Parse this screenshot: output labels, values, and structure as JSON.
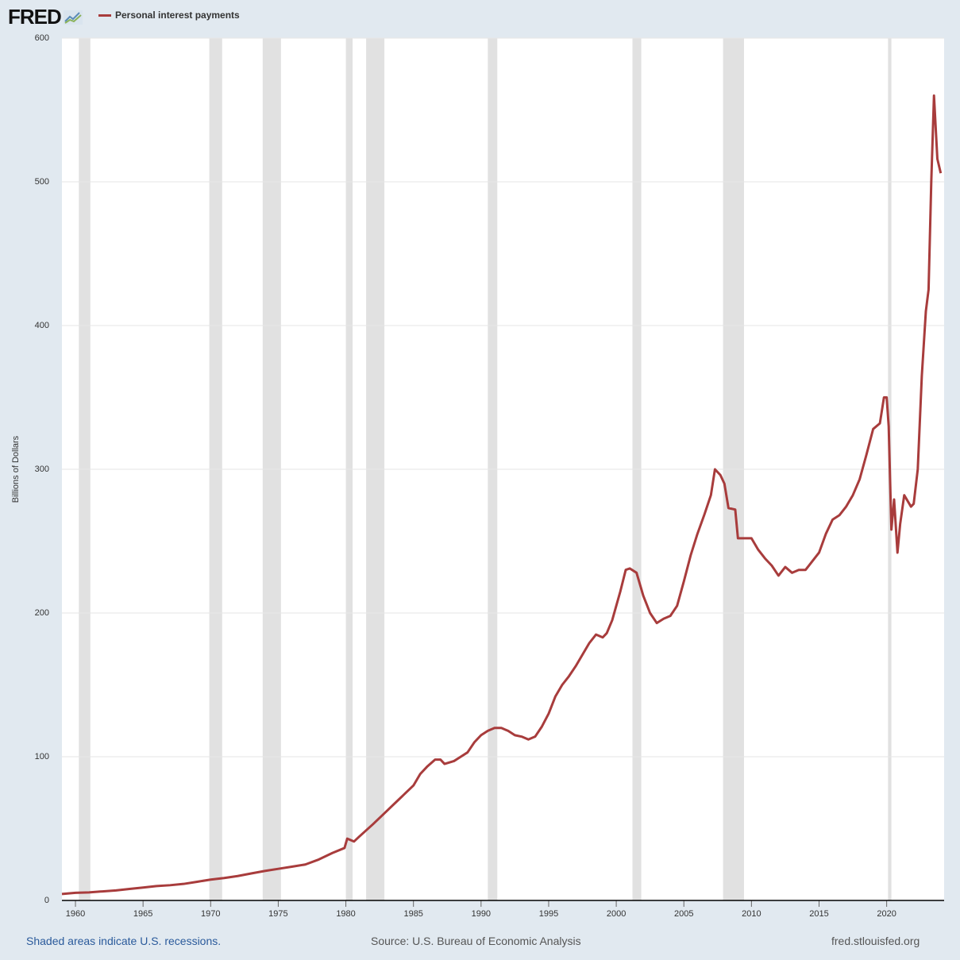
{
  "header": {
    "logo_text": "FRED",
    "logo_icon": "fred-chart-icon"
  },
  "chart_data": {
    "type": "line",
    "title": "",
    "xlabel": "",
    "ylabel": "Billions of Dollars",
    "ylim": [
      0,
      600
    ],
    "xlim": [
      1959.0,
      2024.25
    ],
    "y_ticks": [
      0,
      100,
      200,
      300,
      400,
      500,
      600
    ],
    "y_tick_labels": [
      "0",
      "100",
      "200",
      "300",
      "400",
      "500",
      "600"
    ],
    "x_ticks": [
      1960,
      1965,
      1970,
      1975,
      1980,
      1985,
      1990,
      1995,
      2000,
      2005,
      2010,
      2015,
      2020
    ],
    "x_tick_labels": [
      "1960",
      "1965",
      "1970",
      "1975",
      "1980",
      "1985",
      "1990",
      "1995",
      "2000",
      "2005",
      "2010",
      "2015",
      "2020"
    ],
    "grid": true,
    "legend_position": "top-left",
    "recessions": [
      [
        1960.25,
        1961.1
      ],
      [
        1969.9,
        1970.85
      ],
      [
        1973.85,
        1975.2
      ],
      [
        1980.0,
        1980.5
      ],
      [
        1981.5,
        1982.85
      ],
      [
        1990.5,
        1991.2
      ],
      [
        2001.2,
        2001.85
      ],
      [
        2007.9,
        2009.45
      ],
      [
        2020.1,
        2020.35
      ]
    ],
    "series": [
      {
        "name": "Personal interest payments",
        "color": "#a83c3c",
        "points": [
          [
            1959.0,
            4.5
          ],
          [
            1960.0,
            5.3
          ],
          [
            1961.0,
            5.6
          ],
          [
            1962.0,
            6.3
          ],
          [
            1963.0,
            7.0
          ],
          [
            1964.0,
            8.0
          ],
          [
            1965.0,
            9.0
          ],
          [
            1966.0,
            10.0
          ],
          [
            1967.0,
            10.6
          ],
          [
            1968.0,
            11.5
          ],
          [
            1969.0,
            13.0
          ],
          [
            1970.0,
            14.5
          ],
          [
            1971.0,
            15.6
          ],
          [
            1972.0,
            17.0
          ],
          [
            1973.0,
            18.8
          ],
          [
            1974.0,
            20.5
          ],
          [
            1975.0,
            22.0
          ],
          [
            1976.0,
            23.5
          ],
          [
            1977.0,
            25.0
          ],
          [
            1978.0,
            28.5
          ],
          [
            1979.0,
            33.0
          ],
          [
            1979.9,
            36.5
          ],
          [
            1980.1,
            43.0
          ],
          [
            1980.6,
            41.0
          ],
          [
            1981.0,
            44.5
          ],
          [
            1982.0,
            53.0
          ],
          [
            1983.0,
            62.0
          ],
          [
            1984.0,
            71.0
          ],
          [
            1985.0,
            80.0
          ],
          [
            1985.5,
            88.0
          ],
          [
            1986.0,
            93.0
          ],
          [
            1986.6,
            98.0
          ],
          [
            1987.0,
            98.0
          ],
          [
            1987.3,
            95.0
          ],
          [
            1988.0,
            97.0
          ],
          [
            1988.5,
            100.0
          ],
          [
            1989.0,
            103.0
          ],
          [
            1989.5,
            110.0
          ],
          [
            1990.0,
            115.0
          ],
          [
            1990.5,
            118.0
          ],
          [
            1991.0,
            120.0
          ],
          [
            1991.5,
            120.0
          ],
          [
            1992.0,
            118.0
          ],
          [
            1992.5,
            115.0
          ],
          [
            1993.0,
            114.0
          ],
          [
            1993.5,
            112.0
          ],
          [
            1994.0,
            114.0
          ],
          [
            1994.5,
            121.0
          ],
          [
            1995.0,
            130.0
          ],
          [
            1995.5,
            142.0
          ],
          [
            1996.0,
            150.0
          ],
          [
            1996.5,
            156.0
          ],
          [
            1997.0,
            163.0
          ],
          [
            1997.5,
            171.0
          ],
          [
            1998.0,
            179.0
          ],
          [
            1998.5,
            185.0
          ],
          [
            1999.0,
            183.0
          ],
          [
            1999.3,
            186.0
          ],
          [
            1999.7,
            195.0
          ],
          [
            2000.0,
            205.0
          ],
          [
            2000.3,
            215.0
          ],
          [
            2000.7,
            230.0
          ],
          [
            2001.0,
            231.0
          ],
          [
            2001.5,
            228.0
          ],
          [
            2002.0,
            212.0
          ],
          [
            2002.5,
            200.0
          ],
          [
            2003.0,
            193.0
          ],
          [
            2003.5,
            196.0
          ],
          [
            2004.0,
            198.0
          ],
          [
            2004.5,
            205.0
          ],
          [
            2005.0,
            222.0
          ],
          [
            2005.5,
            240.0
          ],
          [
            2006.0,
            255.0
          ],
          [
            2006.5,
            268.0
          ],
          [
            2007.0,
            282.0
          ],
          [
            2007.3,
            300.0
          ],
          [
            2007.7,
            296.0
          ],
          [
            2008.0,
            290.0
          ],
          [
            2008.3,
            273.0
          ],
          [
            2008.8,
            272.0
          ],
          [
            2009.0,
            252.0
          ],
          [
            2009.5,
            252.0
          ],
          [
            2010.0,
            252.0
          ],
          [
            2010.5,
            244.0
          ],
          [
            2011.0,
            238.0
          ],
          [
            2011.5,
            233.0
          ],
          [
            2012.0,
            226.0
          ],
          [
            2012.5,
            232.0
          ],
          [
            2013.0,
            228.0
          ],
          [
            2013.5,
            230.0
          ],
          [
            2014.0,
            230.0
          ],
          [
            2014.5,
            236.0
          ],
          [
            2015.0,
            242.0
          ],
          [
            2015.5,
            255.0
          ],
          [
            2016.0,
            265.0
          ],
          [
            2016.5,
            268.0
          ],
          [
            2017.0,
            274.0
          ],
          [
            2017.5,
            282.0
          ],
          [
            2018.0,
            293.0
          ],
          [
            2018.5,
            310.0
          ],
          [
            2019.0,
            328.0
          ],
          [
            2019.5,
            332.0
          ],
          [
            2019.8,
            350.0
          ],
          [
            2020.0,
            350.0
          ],
          [
            2020.15,
            330.0
          ],
          [
            2020.35,
            258.0
          ],
          [
            2020.55,
            279.0
          ],
          [
            2020.8,
            242.0
          ],
          [
            2021.0,
            262.0
          ],
          [
            2021.3,
            282.0
          ],
          [
            2021.8,
            274.0
          ],
          [
            2022.0,
            276.0
          ],
          [
            2022.3,
            300.0
          ],
          [
            2022.6,
            365.0
          ],
          [
            2022.9,
            410.0
          ],
          [
            2023.1,
            425.0
          ],
          [
            2023.3,
            500.0
          ],
          [
            2023.5,
            560.0
          ],
          [
            2023.75,
            516.0
          ],
          [
            2024.0,
            506.0
          ]
        ]
      }
    ]
  },
  "footer": {
    "recession_note": "Shaded areas indicate U.S. recessions.",
    "source": "Source: U.S. Bureau of Economic Analysis",
    "site": "fred.stlouisfed.org"
  }
}
